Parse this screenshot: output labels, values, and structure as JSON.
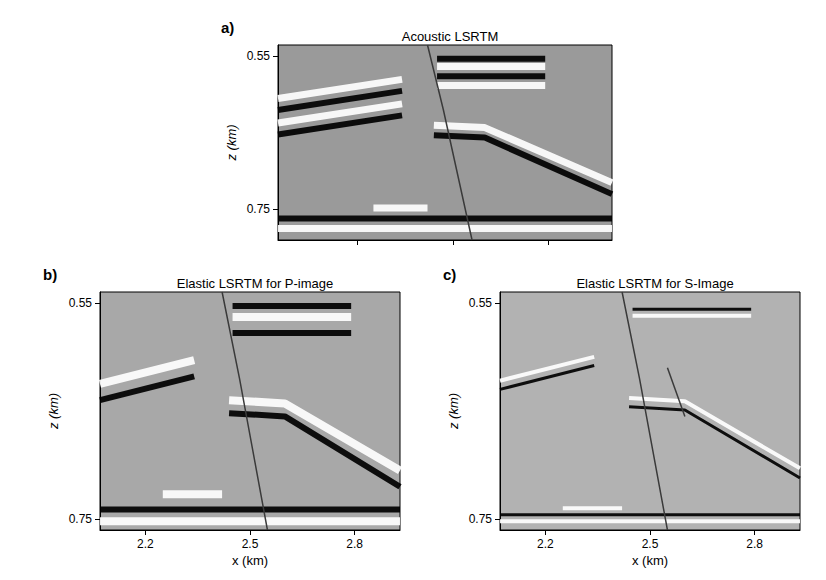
{
  "chart_data": [
    {
      "type": "line",
      "panel": "a)",
      "title": "Acoustic LSRTM",
      "ylabel": "z (km)",
      "xlim": [
        1.95,
        3.0
      ],
      "ylim": [
        0.535,
        0.79
      ],
      "xticks": [
        2.2,
        2.5,
        2.8
      ],
      "yticks": [
        0.55,
        0.75
      ],
      "tick_labels": "y",
      "series": [
        {
          "color": "#ffffff",
          "values": [
            [
              1.95,
              0.605
            ],
            [
              2.34,
              0.58
            ]
          ]
        },
        {
          "color": "#000000",
          "values": [
            [
              1.95,
              0.62
            ],
            [
              2.34,
              0.595
            ]
          ]
        },
        {
          "color": "#ffffff",
          "values": [
            [
              1.95,
              0.637
            ],
            [
              2.34,
              0.612
            ]
          ]
        },
        {
          "color": "#000000",
          "values": [
            [
              1.95,
              0.652
            ],
            [
              2.34,
              0.627
            ]
          ]
        },
        {
          "color": "#000000",
          "values": [
            [
              2.45,
              0.553
            ],
            [
              2.79,
              0.553
            ]
          ]
        },
        {
          "color": "#ffffff",
          "values": [
            [
              2.45,
              0.563
            ],
            [
              2.79,
              0.563
            ]
          ]
        },
        {
          "color": "#000000",
          "values": [
            [
              2.45,
              0.576
            ],
            [
              2.79,
              0.576
            ]
          ]
        },
        {
          "color": "#ffffff",
          "values": [
            [
              2.45,
              0.588
            ],
            [
              2.79,
              0.588
            ]
          ]
        },
        {
          "color": "#ffffff",
          "values": [
            [
              2.44,
              0.64
            ],
            [
              2.6,
              0.643
            ],
            [
              3.0,
              0.715
            ]
          ]
        },
        {
          "color": "#000000",
          "values": [
            [
              2.44,
              0.653
            ],
            [
              2.6,
              0.656
            ],
            [
              3.0,
              0.73
            ]
          ]
        },
        {
          "color": "#ffffff",
          "values": [
            [
              2.25,
              0.748
            ],
            [
              2.42,
              0.748
            ]
          ]
        },
        {
          "color": "#000000",
          "values": [
            [
              1.95,
              0.762
            ],
            [
              3.0,
              0.762
            ]
          ]
        },
        {
          "color": "#ffffff",
          "values": [
            [
              1.95,
              0.775
            ],
            [
              3.0,
              0.775
            ]
          ]
        },
        {
          "color": "#3a3a3a",
          "values": [
            [
              2.42,
              0.535
            ],
            [
              2.47,
              0.62
            ],
            [
              2.56,
              0.79
            ]
          ]
        }
      ]
    },
    {
      "type": "line",
      "panel": "b)",
      "title": "Elastic LSRTM for P-image",
      "xlabel": "x (km)",
      "ylabel": "z (km)",
      "xlim": [
        2.07,
        2.93
      ],
      "ylim": [
        0.54,
        0.76
      ],
      "xticks": [
        2.2,
        2.5,
        2.8
      ],
      "yticks": [
        0.55,
        0.75
      ],
      "series": [
        {
          "color": "#ffffff",
          "values": [
            [
              2.07,
              0.625
            ],
            [
              2.34,
              0.603
            ]
          ]
        },
        {
          "color": "#000000",
          "values": [
            [
              2.07,
              0.64
            ],
            [
              2.34,
              0.618
            ]
          ]
        },
        {
          "color": "#000000",
          "values": [
            [
              2.45,
              0.553
            ],
            [
              2.79,
              0.553
            ]
          ]
        },
        {
          "color": "#ffffff",
          "values": [
            [
              2.45,
              0.563
            ],
            [
              2.79,
              0.563
            ]
          ]
        },
        {
          "color": "#000000",
          "values": [
            [
              2.45,
              0.578
            ],
            [
              2.79,
              0.578
            ]
          ]
        },
        {
          "color": "#ffffff",
          "values": [
            [
              2.44,
              0.64
            ],
            [
              2.6,
              0.643
            ],
            [
              2.93,
              0.705
            ]
          ]
        },
        {
          "color": "#000000",
          "values": [
            [
              2.44,
              0.652
            ],
            [
              2.6,
              0.655
            ],
            [
              2.93,
              0.72
            ]
          ]
        },
        {
          "color": "#ffffff",
          "values": [
            [
              2.25,
              0.727
            ],
            [
              2.42,
              0.727
            ]
          ]
        },
        {
          "color": "#000000",
          "values": [
            [
              2.07,
              0.741
            ],
            [
              2.93,
              0.741
            ]
          ]
        },
        {
          "color": "#ffffff",
          "values": [
            [
              2.07,
              0.752
            ],
            [
              2.93,
              0.752
            ]
          ]
        },
        {
          "color": "#3a3a3a",
          "values": [
            [
              2.42,
              0.54
            ],
            [
              2.47,
              0.62
            ],
            [
              2.55,
              0.76
            ]
          ]
        }
      ]
    },
    {
      "type": "line",
      "panel": "c)",
      "title": "Elastic LSRTM for S-Image",
      "xlabel": "x (km)",
      "ylabel": "z (km)",
      "xlim": [
        2.07,
        2.93
      ],
      "ylim": [
        0.54,
        0.76
      ],
      "xticks": [
        2.2,
        2.5,
        2.8
      ],
      "yticks": [
        0.55,
        0.75
      ],
      "series": [
        {
          "color": "#ffffff",
          "values": [
            [
              2.07,
              0.622
            ],
            [
              2.34,
              0.6
            ]
          ]
        },
        {
          "color": "#000000",
          "values": [
            [
              2.07,
              0.63
            ],
            [
              2.34,
              0.608
            ]
          ]
        },
        {
          "color": "#000000",
          "values": [
            [
              2.45,
              0.556
            ],
            [
              2.79,
              0.556
            ]
          ]
        },
        {
          "color": "#ffffff",
          "values": [
            [
              2.45,
              0.562
            ],
            [
              2.79,
              0.562
            ]
          ]
        },
        {
          "color": "#ffffff",
          "values": [
            [
              2.44,
              0.638
            ],
            [
              2.6,
              0.641
            ],
            [
              2.93,
              0.703
            ]
          ]
        },
        {
          "color": "#000000",
          "values": [
            [
              2.44,
              0.646
            ],
            [
              2.6,
              0.649
            ],
            [
              2.93,
              0.712
            ]
          ]
        },
        {
          "color": "#ffffff",
          "values": [
            [
              2.25,
              0.74
            ],
            [
              2.42,
              0.74
            ]
          ]
        },
        {
          "color": "#000000",
          "values": [
            [
              2.07,
              0.746
            ],
            [
              2.93,
              0.746
            ]
          ]
        },
        {
          "color": "#ffffff",
          "values": [
            [
              2.07,
              0.752
            ],
            [
              2.93,
              0.752
            ]
          ]
        },
        {
          "color": "#3a3a3a",
          "values": [
            [
              2.42,
              0.54
            ],
            [
              2.47,
              0.62
            ],
            [
              2.55,
              0.76
            ]
          ]
        },
        {
          "color": "#3a3a3a",
          "values": [
            [
              2.55,
              0.61
            ],
            [
              2.6,
              0.655
            ]
          ]
        }
      ]
    }
  ]
}
